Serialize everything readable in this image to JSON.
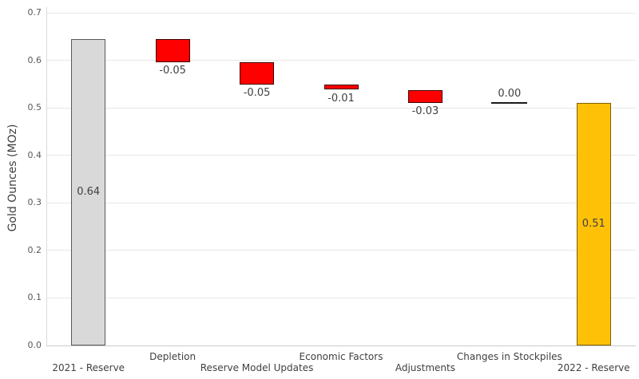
{
  "chart_data": {
    "type": "bar",
    "subtype": "waterfall",
    "title": "",
    "xlabel": "",
    "ylabel": "Gold Ounces (MOz)",
    "ylim": [
      0,
      0.7
    ],
    "ytick_step": 0.1,
    "yticks": [
      0.0,
      0.1,
      0.2,
      0.3,
      0.4,
      0.5,
      0.6,
      0.7
    ],
    "grid": true,
    "legend": false,
    "categories": [
      "2021 - Reserve",
      "Depletion",
      "Reserve Model Updates",
      "Economic Factors",
      "Adjustments",
      "Changes in Stockpiles",
      "2022 - Reserve"
    ],
    "bars": [
      {
        "category": "2021 - Reserve",
        "kind": "total",
        "start": 0,
        "end": 0.644,
        "value_label": "0.64",
        "label_position": "inside-center",
        "fill": "#d9d9d9",
        "border": "#595959",
        "label_row": "lower"
      },
      {
        "category": "Depletion",
        "kind": "decrease",
        "start": 0.644,
        "end": 0.596,
        "value_label": "-0.05",
        "label_position": "below",
        "fill": "#fe0000",
        "border": "#3d0000",
        "label_row": "upper"
      },
      {
        "category": "Reserve Model Updates",
        "kind": "decrease",
        "start": 0.596,
        "end": 0.549,
        "value_label": "-0.05",
        "label_position": "below",
        "fill": "#fe0000",
        "border": "#3d0000",
        "label_row": "lower"
      },
      {
        "category": "Economic Factors",
        "kind": "decrease",
        "start": 0.549,
        "end": 0.538,
        "value_label": "-0.01",
        "label_position": "below",
        "fill": "#fe0000",
        "border": "#3d0000",
        "label_row": "upper"
      },
      {
        "category": "Adjustments",
        "kind": "decrease",
        "start": 0.538,
        "end": 0.511,
        "value_label": "-0.03",
        "label_position": "below",
        "fill": "#fe0000",
        "border": "#3d0000",
        "label_row": "lower"
      },
      {
        "category": "Changes in Stockpiles",
        "kind": "zero",
        "start": 0.511,
        "end": 0.511,
        "value_label": "0.00",
        "label_position": "above",
        "fill": "none",
        "border": "#1a1a1a",
        "label_row": "upper"
      },
      {
        "category": "2022 - Reserve",
        "kind": "total",
        "start": 0,
        "end": 0.511,
        "value_label": "0.51",
        "label_position": "inside-center",
        "fill": "#ffc107",
        "border": "#7f6000",
        "label_row": "lower"
      }
    ],
    "colors": {
      "total_start": "#d9d9d9",
      "decrease": "#fe0000",
      "total_end": "#ffc107",
      "gridline": "#e7e7e7",
      "text": "#404040",
      "tick_text": "#595959"
    }
  }
}
